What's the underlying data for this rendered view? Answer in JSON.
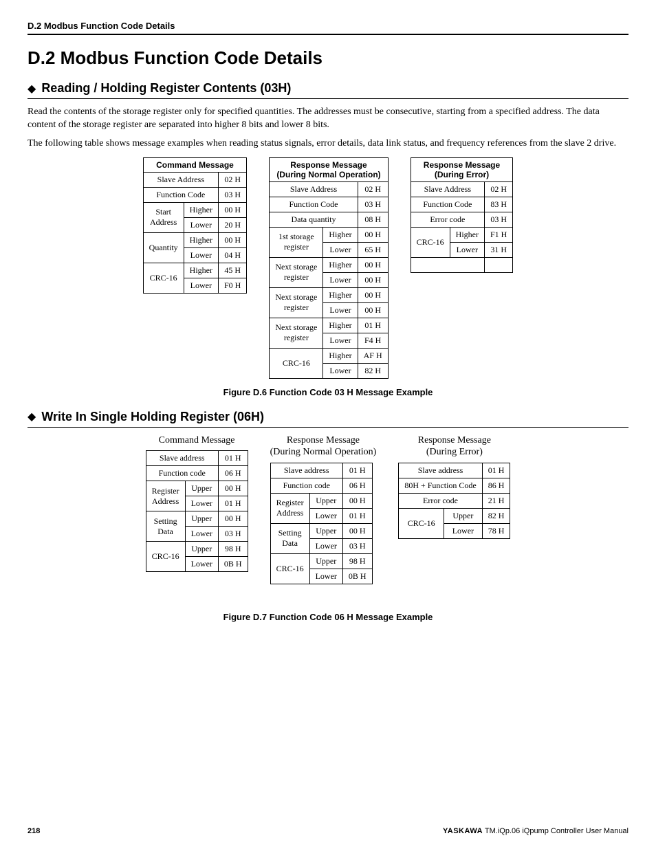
{
  "header": {
    "running": "D.2  Modbus Function Code Details"
  },
  "title": "D.2    Modbus Function Code Details",
  "section1": {
    "heading": "Reading / Holding Register Contents (03H)",
    "para1": "Read the contents of the storage register only for specified quantities. The addresses must be consecutive, starting from a specified address. The data content of the storage register are separated into higher 8 bits and lower 8 bits.",
    "para2": "The following table shows message examples when reading status signals, error details, data link status, and frequency references from the slave 2 drive.",
    "table_cmd": {
      "title": "Command Message",
      "rows": [
        {
          "label": "Slave Address",
          "sub": "",
          "val": "02 H",
          "span": 2
        },
        {
          "label": "Function Code",
          "sub": "",
          "val": "03 H",
          "span": 2
        },
        {
          "label": "Start Address",
          "sub": "Higher",
          "val": "00 H",
          "rowspan": 2
        },
        {
          "label": "",
          "sub": "Lower",
          "val": "20 H"
        },
        {
          "label": "Quantity",
          "sub": "Higher",
          "val": "00 H",
          "rowspan": 2
        },
        {
          "label": "",
          "sub": "Lower",
          "val": "04 H"
        },
        {
          "label": "CRC-16",
          "sub": "Higher",
          "val": "45 H",
          "rowspan": 2
        },
        {
          "label": "",
          "sub": "Lower",
          "val": "F0 H"
        }
      ]
    },
    "table_resp_ok": {
      "title1": "Response Message",
      "title2": "(During Normal Operation)",
      "rows": [
        {
          "label": "Slave Address",
          "sub": "",
          "val": "02 H",
          "span": 2
        },
        {
          "label": "Function Code",
          "sub": "",
          "val": "03 H",
          "span": 2
        },
        {
          "label": "Data quantity",
          "sub": "",
          "val": "08 H",
          "span": 2
        },
        {
          "label": "1st storage register",
          "sub": "Higher",
          "val": "00 H",
          "rowspan": 2
        },
        {
          "label": "",
          "sub": "Lower",
          "val": "65 H"
        },
        {
          "label": "Next storage register",
          "sub": "Higher",
          "val": "00 H",
          "rowspan": 2
        },
        {
          "label": "",
          "sub": "Lower",
          "val": "00 H"
        },
        {
          "label": "Next storage register",
          "sub": "Higher",
          "val": "00 H",
          "rowspan": 2
        },
        {
          "label": "",
          "sub": "Lower",
          "val": "00 H"
        },
        {
          "label": "Next storage register",
          "sub": "Higher",
          "val": "01 H",
          "rowspan": 2
        },
        {
          "label": "",
          "sub": "Lower",
          "val": "F4 H"
        },
        {
          "label": "CRC-16",
          "sub": "Higher",
          "val": "AF H",
          "rowspan": 2
        },
        {
          "label": "",
          "sub": "Lower",
          "val": "82 H"
        }
      ]
    },
    "table_resp_err": {
      "title1": "Response Message",
      "title2": "(During Error)",
      "rows": [
        {
          "label": "Slave Address",
          "sub": "",
          "val": "02 H",
          "span": 2
        },
        {
          "label": "Function Code",
          "sub": "",
          "val": "83 H",
          "span": 2
        },
        {
          "label": "Error code",
          "sub": "",
          "val": "03 H",
          "span": 2
        },
        {
          "label": "CRC-16",
          "sub": "Higher",
          "val": "F1 H",
          "rowspan": 2
        },
        {
          "label": "",
          "sub": "Lower",
          "val": "31 H"
        },
        {
          "label": "",
          "sub": "",
          "val": "",
          "span": 2
        }
      ]
    },
    "fig_caption": "Figure D.6  Function Code 03 H Message Example"
  },
  "section2": {
    "heading": "Write In Single Holding Register (06H)",
    "table_cmd": {
      "title": "Command Message",
      "rows": [
        {
          "label": "Slave address",
          "sub": "",
          "val": "01 H",
          "span": 2
        },
        {
          "label": "Function code",
          "sub": "",
          "val": "06 H",
          "span": 2
        },
        {
          "label": "Register Address",
          "sub": "Upper",
          "val": "00 H",
          "rowspan": 2
        },
        {
          "label": "",
          "sub": "Lower",
          "val": "01 H"
        },
        {
          "label": "Setting Data",
          "sub": "Upper",
          "val": "00 H",
          "rowspan": 2
        },
        {
          "label": "",
          "sub": "Lower",
          "val": "03 H"
        },
        {
          "label": "CRC-16",
          "sub": "Upper",
          "val": "98 H",
          "rowspan": 2
        },
        {
          "label": "",
          "sub": "Lower",
          "val": "0B H"
        }
      ]
    },
    "table_resp_ok": {
      "title1": "Response Message",
      "title2": "(During Normal Operation)",
      "rows": [
        {
          "label": "Slave address",
          "sub": "",
          "val": "01 H",
          "span": 2
        },
        {
          "label": "Function code",
          "sub": "",
          "val": "06 H",
          "span": 2
        },
        {
          "label": "Register Address",
          "sub": "Upper",
          "val": "00 H",
          "rowspan": 2
        },
        {
          "label": "",
          "sub": "Lower",
          "val": "01 H"
        },
        {
          "label": "Setting Data",
          "sub": "Upper",
          "val": "00 H",
          "rowspan": 2
        },
        {
          "label": "",
          "sub": "Lower",
          "val": "03 H"
        },
        {
          "label": "CRC-16",
          "sub": "Upper",
          "val": "98 H",
          "rowspan": 2
        },
        {
          "label": "",
          "sub": "Lower",
          "val": "0B H"
        }
      ]
    },
    "table_resp_err": {
      "title1": "Response Message",
      "title2": "(During Error)",
      "rows": [
        {
          "label": "Slave address",
          "sub": "",
          "val": "01 H",
          "span": 2
        },
        {
          "label": "80H + Function Code",
          "sub": "",
          "val": "86 H",
          "span": 2
        },
        {
          "label": "Error code",
          "sub": "",
          "val": "21 H",
          "span": 2
        },
        {
          "label": "CRC-16",
          "sub": "Upper",
          "val": "82 H",
          "rowspan": 2
        },
        {
          "label": "",
          "sub": "Lower",
          "val": "78 H"
        }
      ]
    },
    "fig_caption": "Figure D.7  Function Code 06 H Message Example"
  },
  "footer": {
    "page": "218",
    "brand": "YASKAWA",
    "manual": " TM.iQp.06 iQpump Controller User Manual"
  }
}
